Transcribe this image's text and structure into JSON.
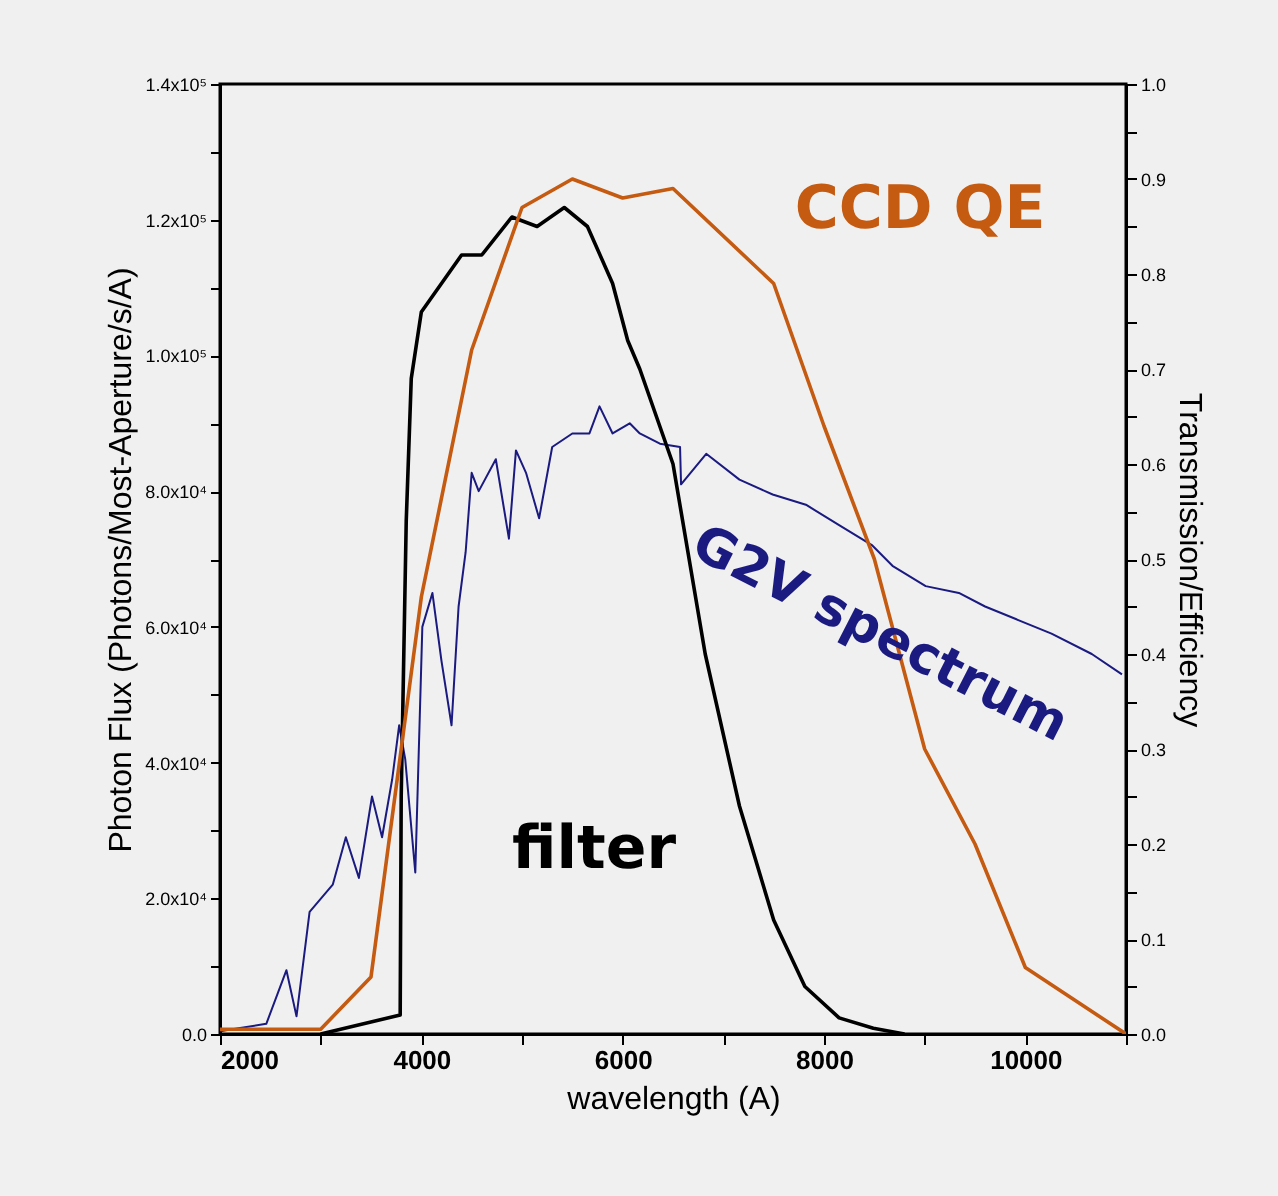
{
  "chart_data": {
    "type": "line",
    "xlabel": "wavelength (A)",
    "ylabel": "Photon Flux (Photons/Most-Aperture/s/A)",
    "y2label": "Transmission/Efficiency",
    "xlim": [
      2000,
      11000
    ],
    "xticks": [
      2000,
      {
        "value": 3000,
        "label": null
      },
      4000,
      {
        "value": 5000,
        "label": null
      },
      6000,
      {
        "value": 7000,
        "label": null
      },
      8000,
      {
        "value": 9000,
        "label": null
      },
      10000,
      {
        "value": 11000,
        "label": null
      }
    ],
    "ylim": [
      0,
      140000
    ],
    "yticks": [
      {
        "value": 0,
        "label": "0.0"
      },
      {
        "value": 10000,
        "label": null
      },
      {
        "value": 20000,
        "label": "2.0x10⁴"
      },
      {
        "value": 30000,
        "label": null
      },
      {
        "value": 40000,
        "label": "4.0x10⁴"
      },
      {
        "value": 50000,
        "label": null
      },
      {
        "value": 60000,
        "label": "6.0x10⁴"
      },
      {
        "value": 70000,
        "label": null
      },
      {
        "value": 80000,
        "label": "8.0x10⁴"
      },
      {
        "value": 90000,
        "label": null
      },
      {
        "value": 100000,
        "label": "1.0x10⁵"
      },
      {
        "value": 110000,
        "label": null
      },
      {
        "value": 120000,
        "label": "1.2x10⁵"
      },
      {
        "value": 130000,
        "label": null
      },
      {
        "value": 140000,
        "label": "1.4x10⁵"
      }
    ],
    "y2lim": [
      0,
      1
    ],
    "y2ticks": [
      {
        "value": 0,
        "label": "0.0"
      },
      {
        "value": 0.05,
        "label": null
      },
      0.1,
      {
        "value": 0.15,
        "label": null
      },
      0.2,
      {
        "value": 0.25,
        "label": null
      },
      0.3,
      {
        "value": 0.35,
        "label": null
      },
      0.4,
      {
        "value": 0.45,
        "label": null
      },
      0.5,
      {
        "value": 0.55,
        "label": null
      },
      0.6,
      {
        "value": 0.65,
        "label": null
      },
      0.7,
      {
        "value": 0.75,
        "label": null
      },
      0.8,
      {
        "value": 0.85,
        "label": null
      },
      0.9,
      {
        "value": 0.95,
        "label": null
      },
      {
        "value": 1,
        "label": "1.0"
      }
    ],
    "grid": false,
    "legend": false,
    "marker": "none",
    "line_style": "solid",
    "series": [
      {
        "name": "G2V spectrum",
        "color": "#1a1a80",
        "x": [
          2000,
          2200,
          2460,
          2660,
          2760,
          2890,
          3120,
          3250,
          3380,
          3510,
          3610,
          3710,
          3780,
          3840,
          3940,
          4010,
          4110,
          4200,
          4300,
          4370,
          4440,
          4500,
          4570,
          4740,
          4870,
          4940,
          5040,
          5170,
          5300,
          5500,
          5670,
          5770,
          5900,
          6070,
          6170,
          6370,
          6570,
          6580,
          6830,
          7160,
          7490,
          7820,
          8150,
          8480,
          8680,
          9010,
          9340,
          9600,
          9930,
          10260,
          10660,
          10960
        ],
        "values": [
          400,
          900,
          1500,
          9400,
          2600,
          18000,
          22000,
          29000,
          23000,
          35000,
          29000,
          37500,
          45500,
          40500,
          23800,
          60000,
          65000,
          55000,
          45500,
          63000,
          71000,
          82700,
          80000,
          84700,
          73000,
          86000,
          82700,
          76000,
          86500,
          88500,
          88500,
          92500,
          88500,
          90000,
          88500,
          87000,
          86500,
          81000,
          85500,
          81700,
          79500,
          78000,
          75000,
          72000,
          69000,
          66000,
          65000,
          63000,
          61000,
          59000,
          56000,
          53000
        ]
      },
      {
        "name": "filter",
        "color": "#000000",
        "axis": "y2",
        "x": [
          3000,
          3790,
          3800,
          3850,
          3900,
          4000,
          4200,
          4400,
          4600,
          4900,
          5150,
          5420,
          5650,
          5900,
          6050,
          6170,
          6500,
          6820,
          7160,
          7500,
          7810,
          8150,
          8490,
          8800
        ],
        "values": [
          0,
          0.02,
          0.25,
          0.54,
          0.69,
          0.76,
          0.79,
          0.82,
          0.82,
          0.86,
          0.85,
          0.87,
          0.85,
          0.79,
          0.73,
          0.7,
          0.6,
          0.4,
          0.24,
          0.12,
          0.05,
          0.017,
          0.006,
          0
        ]
      },
      {
        "name": "CCD QE",
        "color": "#c55a11",
        "axis": "y2",
        "x": [
          2000,
          3000,
          3500,
          4000,
          4500,
          5000,
          5500,
          6000,
          6500,
          7500,
          8000,
          8500,
          9000,
          9500,
          10000,
          11000
        ],
        "values": [
          0.005,
          0.005,
          0.06,
          0.46,
          0.72,
          0.87,
          0.9,
          0.88,
          0.89,
          0.79,
          0.64,
          0.5,
          0.3,
          0.2,
          0.07,
          0
        ]
      }
    ]
  }
}
